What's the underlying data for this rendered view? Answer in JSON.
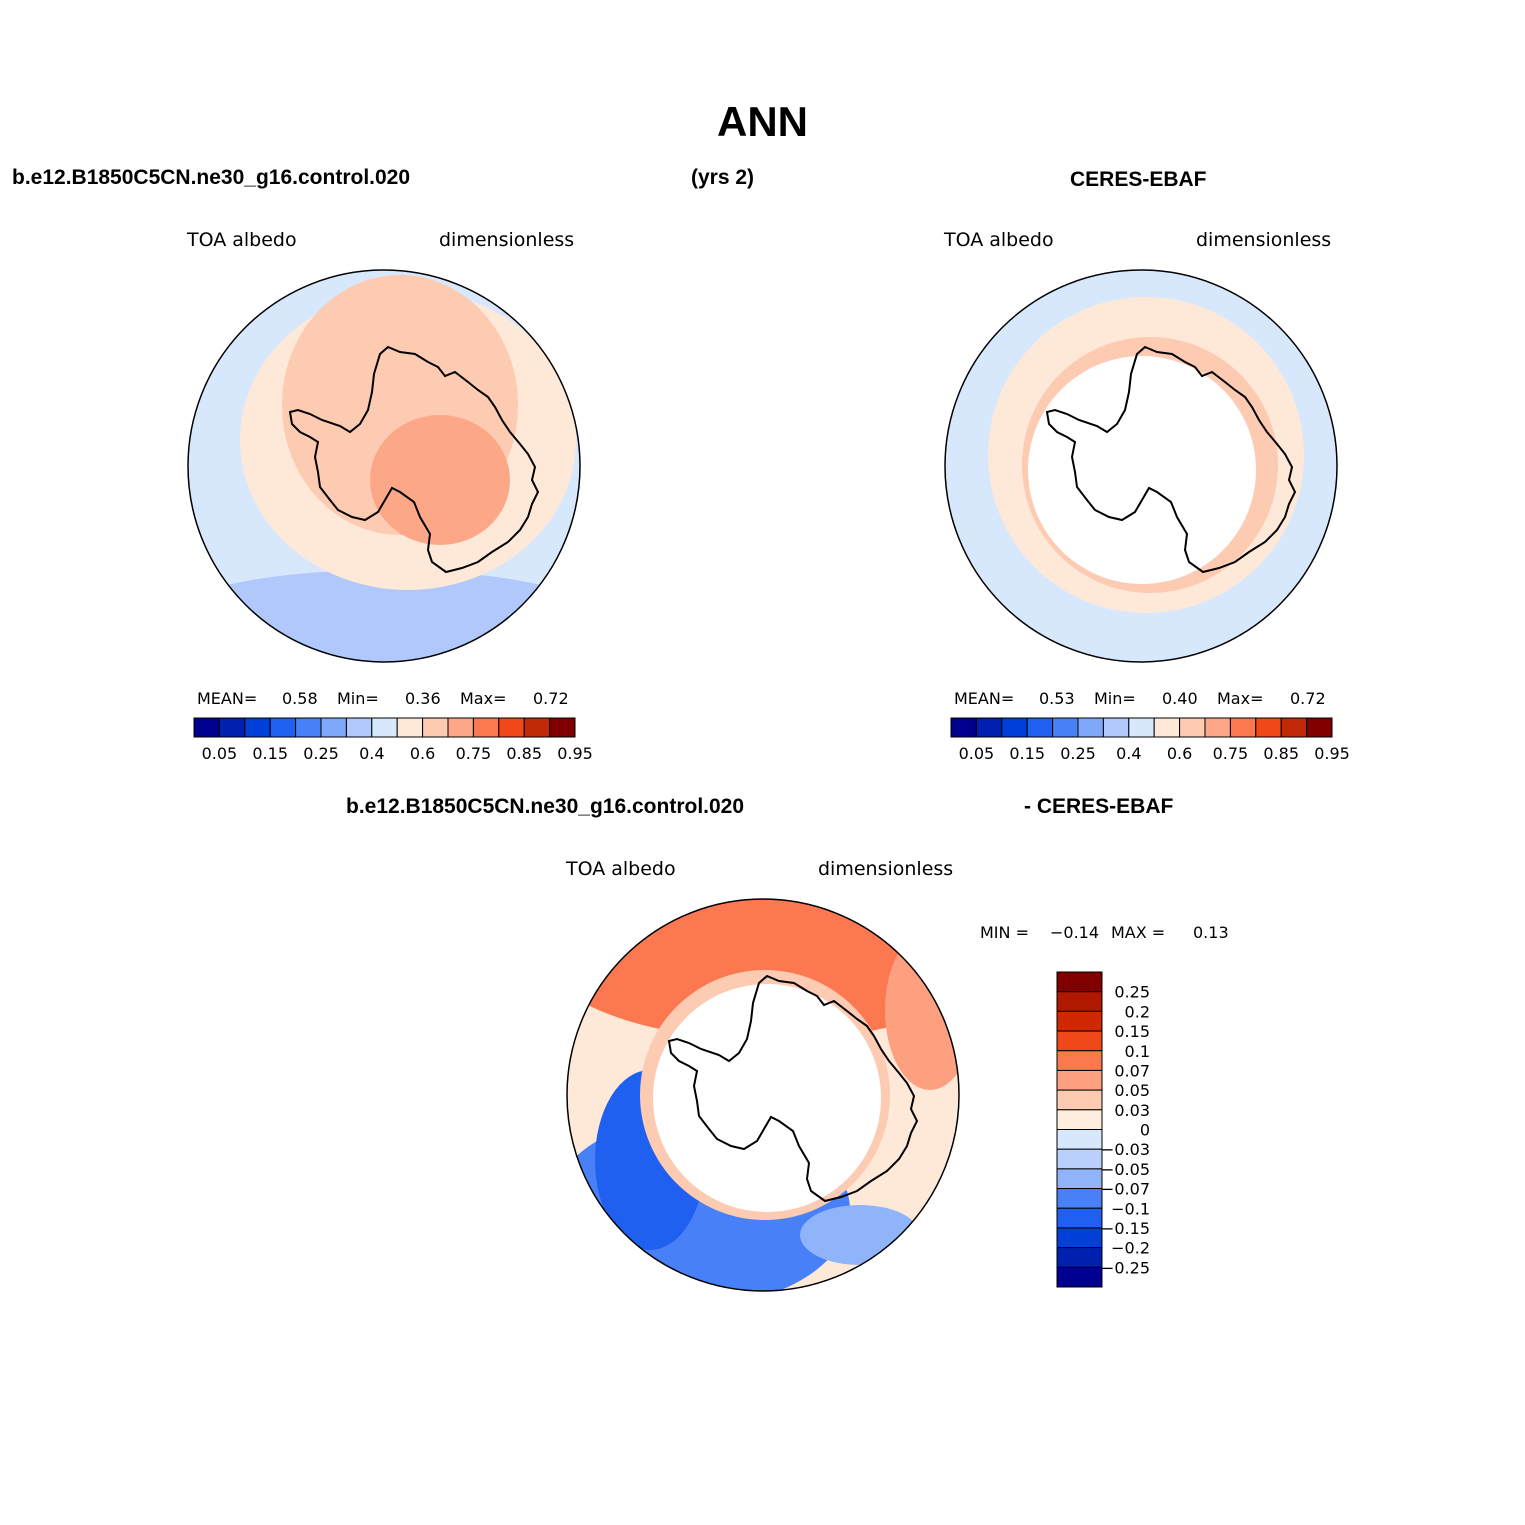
{
  "title": "ANN",
  "header": {
    "case_name": "b.e12.B1850C5CN.ne30_g16.control.020",
    "years": "(yrs 2)",
    "obs_name": "CERES-EBAF"
  },
  "diff_header": {
    "case_name": "b.e12.B1850C5CN.ne30_g16.control.020",
    "obs_name": "- CERES-EBAF"
  },
  "panels": [
    {
      "variable": "TOA  albedo",
      "units": "dimensionless",
      "mean_label": "MEAN=",
      "mean": "0.58",
      "min_label": "Min=",
      "min": "0.36",
      "max_label": "Max=",
      "max": "0.72"
    },
    {
      "variable": "TOA  albedo",
      "units": "dimensionless",
      "mean_label": "MEAN=",
      "mean": "0.53",
      "min_label": "Min=",
      "min": "0.40",
      "max_label": "Max=",
      "max": "0.72"
    },
    {
      "variable": "TOA  albedo",
      "units": "dimensionless",
      "min_label": "MIN =",
      "min": "−0.14",
      "max_label": "MAX =",
      "max": "0.13"
    }
  ],
  "chart_data": [
    {
      "type": "heatmap",
      "projection": "south polar stereographic",
      "title": "TOA  albedo",
      "units": "dimensionless",
      "stats": {
        "mean": 0.58,
        "min": 0.36,
        "max": 0.72
      },
      "colorbar": {
        "orientation": "horizontal",
        "colors": [
          "#00008f",
          "#0020b0",
          "#0040d8",
          "#2060f0",
          "#4880f8",
          "#80a8fa",
          "#b0c8fb",
          "#d8e8fc",
          "#fee8d8",
          "#fdcab2",
          "#fca888",
          "#fb7850",
          "#f04818",
          "#c02808",
          "#800000"
        ],
        "tick_labels": [
          "0.05",
          "0.15",
          "0.25",
          "0.4",
          "0.6",
          "0.75",
          "0.85",
          "0.95"
        ]
      }
    },
    {
      "type": "heatmap",
      "projection": "south polar stereographic",
      "title": "TOA  albedo",
      "units": "dimensionless",
      "stats": {
        "mean": 0.53,
        "min": 0.4,
        "max": 0.72
      },
      "colorbar": {
        "orientation": "horizontal",
        "colors": [
          "#00008f",
          "#0020b0",
          "#0040d8",
          "#2060f0",
          "#4880f8",
          "#80a8fa",
          "#b0c8fb",
          "#d8e8fc",
          "#fee8d8",
          "#fdcab2",
          "#fca888",
          "#fb7850",
          "#f04818",
          "#c02808",
          "#800000"
        ],
        "tick_labels": [
          "0.05",
          "0.15",
          "0.25",
          "0.4",
          "0.6",
          "0.75",
          "0.85",
          "0.95"
        ]
      }
    },
    {
      "type": "heatmap",
      "projection": "south polar stereographic",
      "title": "TOA  albedo",
      "units": "dimensionless",
      "stats": {
        "min": -0.14,
        "max": 0.13
      },
      "colorbar": {
        "orientation": "vertical",
        "colors_top_to_bottom": [
          "#800000",
          "#b01800",
          "#d02800",
          "#f04818",
          "#fb7850",
          "#fca080",
          "#fdcab2",
          "#feeee0",
          "#d8e8fc",
          "#b8d0fb",
          "#90b4fa",
          "#4880f8",
          "#2060f0",
          "#0040d8",
          "#0020b0",
          "#00008f"
        ],
        "tick_labels": [
          "0.25",
          "0.2",
          "0.15",
          "0.1",
          "0.07",
          "0.05",
          "0.03",
          "0",
          "−0.03",
          "−0.05",
          "−0.07",
          "−0.1",
          "−0.15",
          "−0.2",
          "−0.25"
        ]
      }
    }
  ]
}
